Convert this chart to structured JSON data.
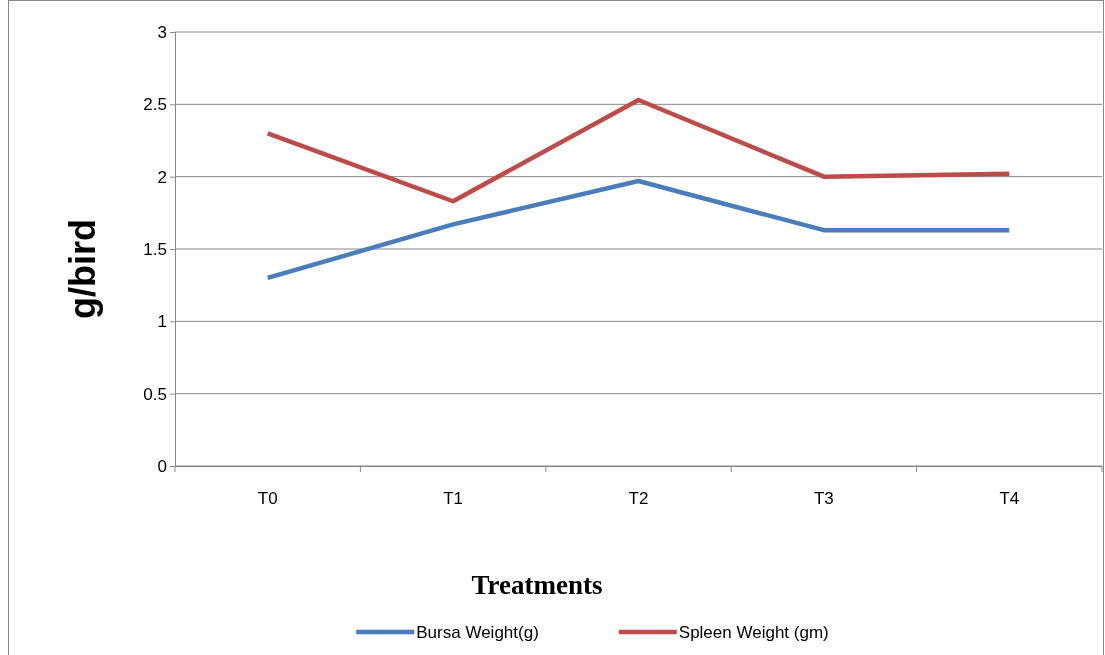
{
  "chart_data": {
    "type": "line",
    "xlabel": "Treatments",
    "ylabel": "g/bird",
    "categories": [
      "T0",
      "T1",
      "T2",
      "T3",
      "T4"
    ],
    "series": [
      {
        "name": "Bursa Weight(g)",
        "color": "#4a7ebb",
        "values": [
          1.3,
          1.67,
          1.97,
          1.63,
          1.63
        ]
      },
      {
        "name": "Spleen Weight (gm)",
        "color": "#be4b48",
        "values": [
          2.3,
          1.83,
          2.53,
          2.0,
          2.02
        ]
      }
    ],
    "ylim": [
      0,
      3
    ],
    "yticks": [
      0,
      0.5,
      1,
      1.5,
      2,
      2.5,
      3
    ],
    "grid": "y",
    "legend": "bottom",
    "marker": "none",
    "line_style": "solid"
  }
}
